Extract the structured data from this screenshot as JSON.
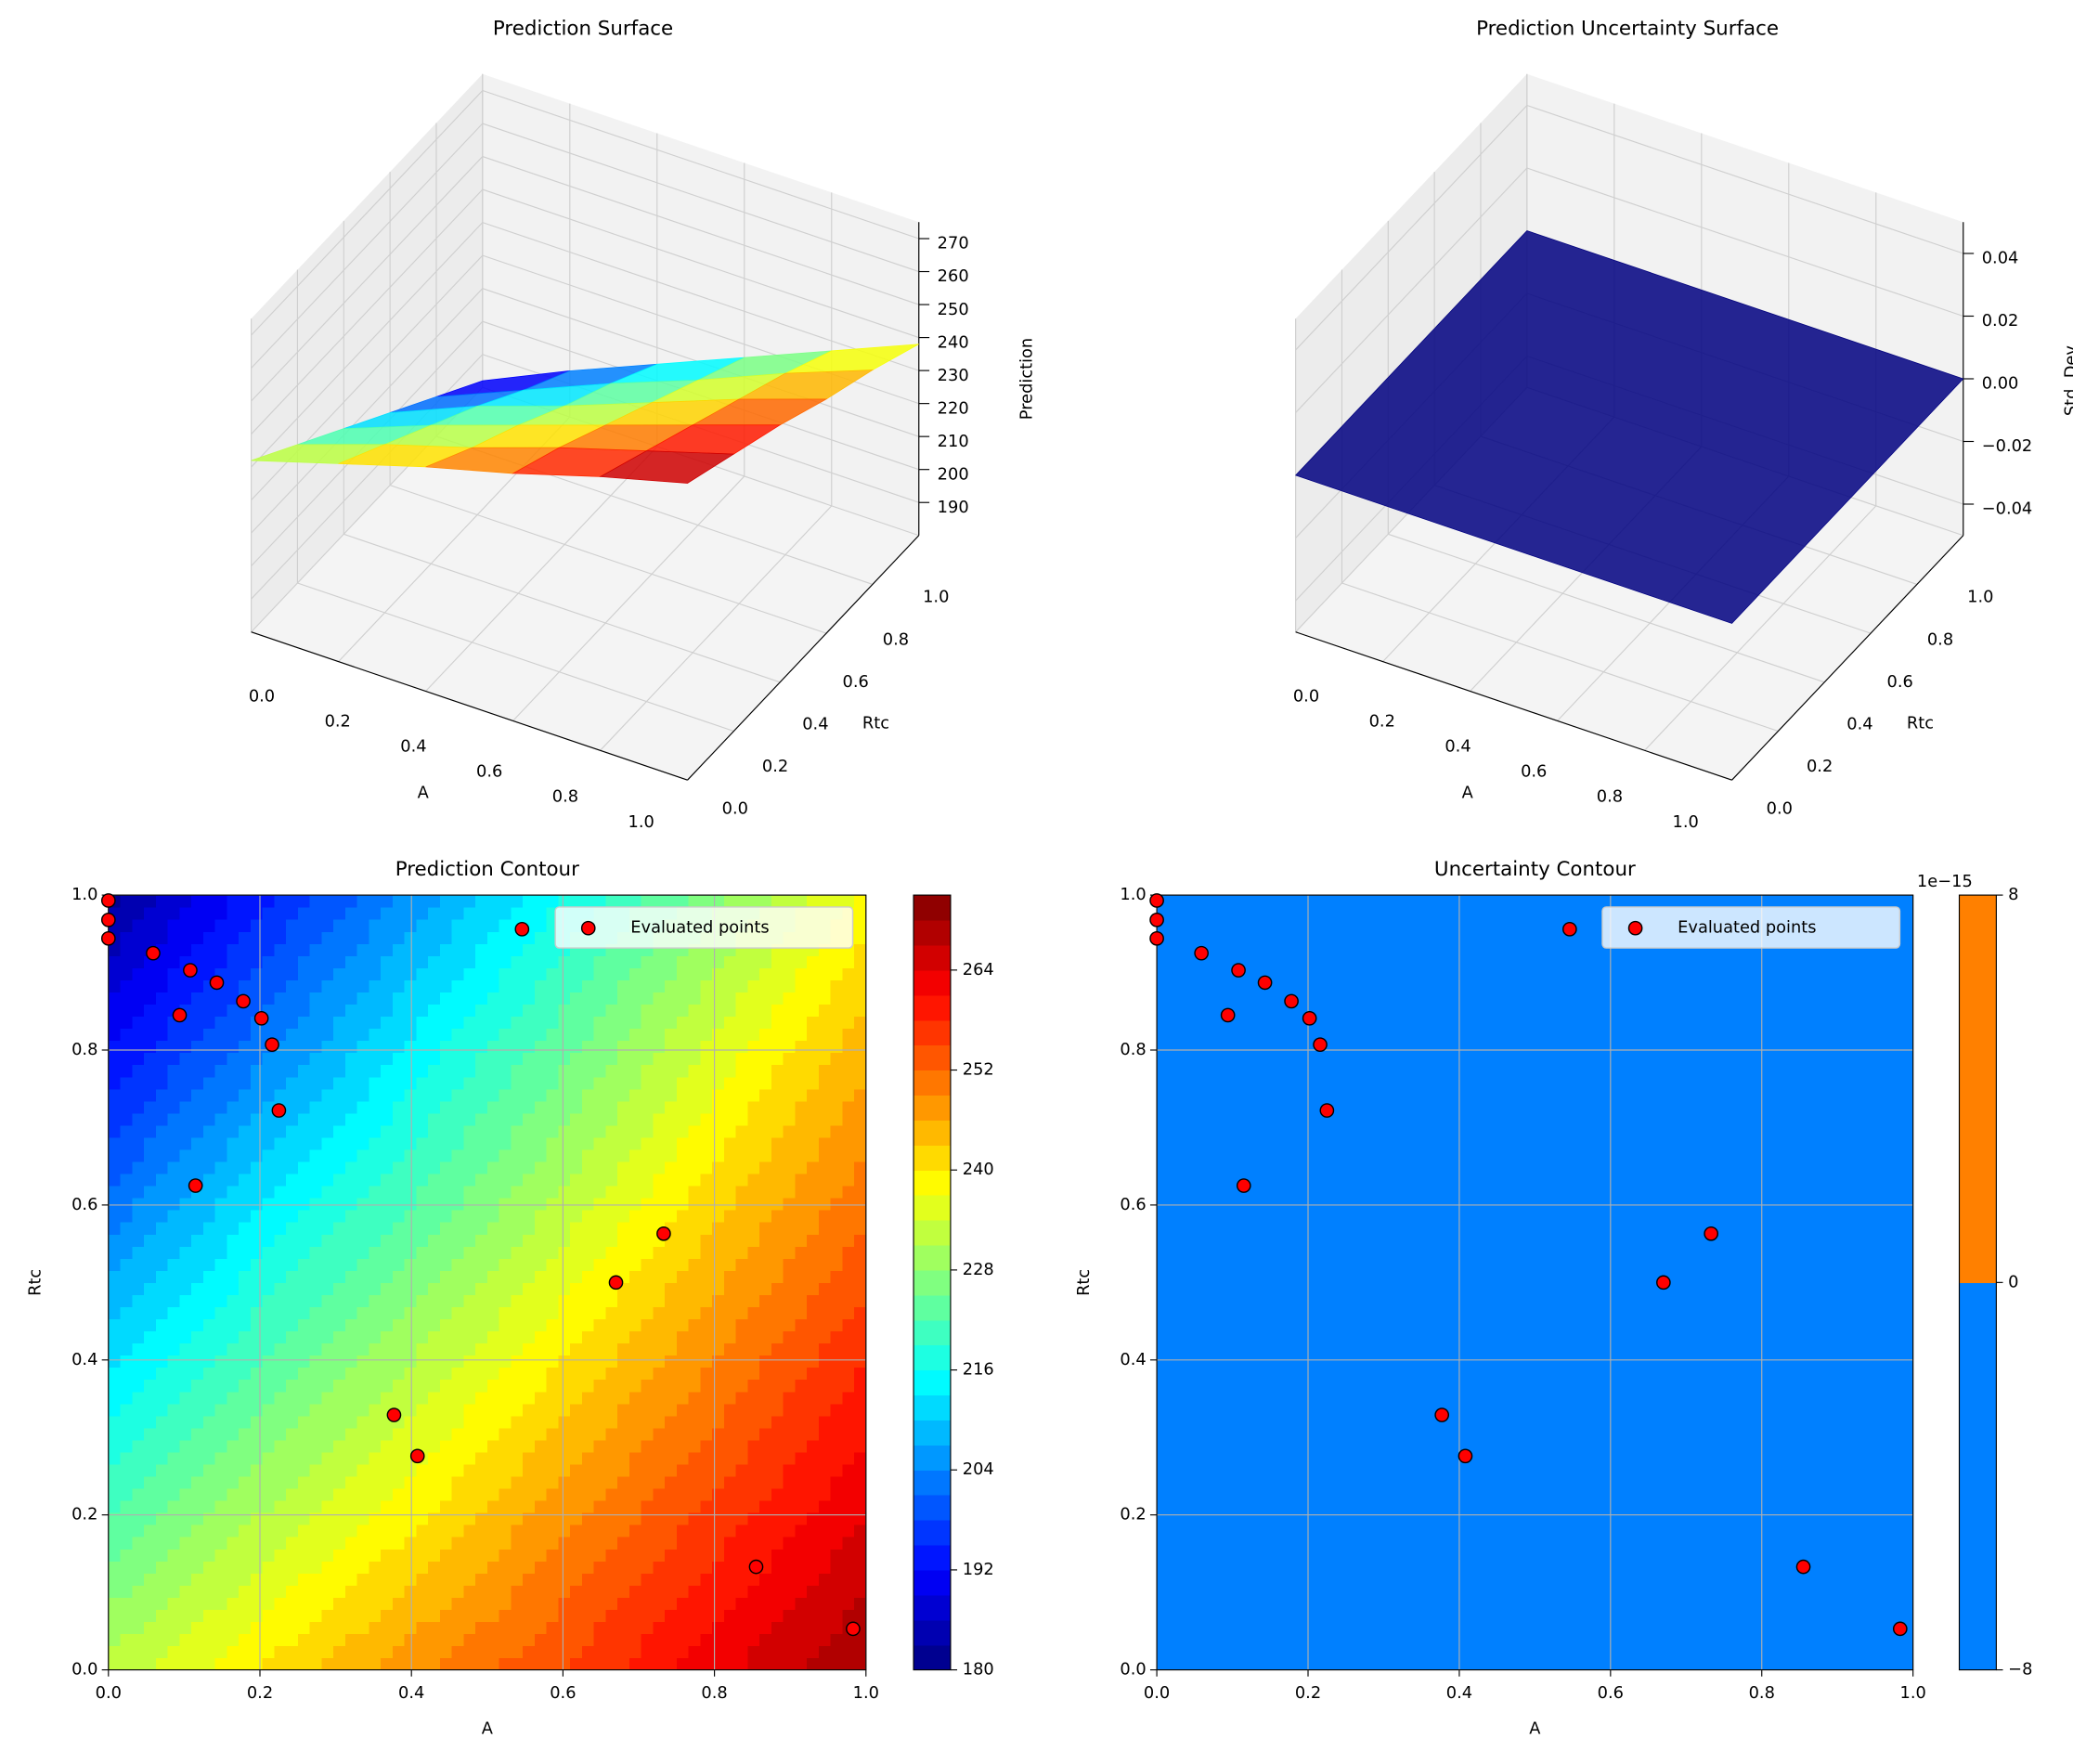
{
  "chart_data": [
    {
      "type": "surface3d",
      "title": "Prediction Surface",
      "xlabel": "A",
      "ylabel": "Rtc",
      "zlabel": "Prediction",
      "x": [
        0,
        0.2,
        0.4,
        0.6,
        0.8,
        1
      ],
      "y": [
        0,
        0.2,
        0.4,
        0.6,
        0.8,
        1
      ],
      "z": [
        [
          232,
          240,
          248,
          255,
          263,
          270
        ],
        [
          222,
          231,
          239,
          248,
          256,
          264
        ],
        [
          212,
          222,
          231,
          240,
          249,
          258
        ],
        [
          202,
          213,
          222,
          232,
          242,
          251
        ],
        [
          192,
          203,
          214,
          224,
          235,
          245
        ],
        [
          182,
          194,
          205,
          216,
          227,
          238
        ]
      ],
      "xlim": [
        0,
        1
      ],
      "ylim": [
        0,
        1
      ],
      "zlim": [
        180,
        275
      ],
      "xticks": [
        {
          "value": 0,
          "label": "0.0"
        },
        {
          "value": 0.2,
          "label": "0.2"
        },
        {
          "value": 0.4,
          "label": "0.4"
        },
        {
          "value": 0.6,
          "label": "0.6"
        },
        {
          "value": 0.8,
          "label": "0.8"
        },
        {
          "value": 1,
          "label": "1.0"
        }
      ],
      "yticks": [
        {
          "value": 0,
          "label": "0.0"
        },
        {
          "value": 0.2,
          "label": "0.2"
        },
        {
          "value": 0.4,
          "label": "0.4"
        },
        {
          "value": 0.6,
          "label": "0.6"
        },
        {
          "value": 0.8,
          "label": "0.8"
        },
        {
          "value": 1,
          "label": "1.0"
        }
      ],
      "zticks": [
        190,
        200,
        210,
        220,
        230,
        240,
        250,
        260,
        270
      ],
      "colormap": "jet"
    },
    {
      "type": "surface3d",
      "title": "Prediction Uncertainty Surface",
      "xlabel": "A",
      "ylabel": "Rtc",
      "zlabel": "Std. Dev.",
      "x": [
        0,
        1
      ],
      "y": [
        0,
        1
      ],
      "z": [
        [
          0,
          0
        ],
        [
          0,
          0
        ]
      ],
      "xlim": [
        0,
        1
      ],
      "ylim": [
        0,
        1
      ],
      "zlim": [
        -0.05,
        0.05
      ],
      "xticks": [
        {
          "value": 0,
          "label": "0.0"
        },
        {
          "value": 0.2,
          "label": "0.2"
        },
        {
          "value": 0.4,
          "label": "0.4"
        },
        {
          "value": 0.6,
          "label": "0.6"
        },
        {
          "value": 0.8,
          "label": "0.8"
        },
        {
          "value": 1,
          "label": "1.0"
        }
      ],
      "yticks": [
        {
          "value": 0,
          "label": "0.0"
        },
        {
          "value": 0.2,
          "label": "0.2"
        },
        {
          "value": 0.4,
          "label": "0.4"
        },
        {
          "value": 0.6,
          "label": "0.6"
        },
        {
          "value": 0.8,
          "label": "0.8"
        },
        {
          "value": 1,
          "label": "1.0"
        }
      ],
      "zticks": [
        {
          "value": -0.04,
          "label": "−0.04"
        },
        {
          "value": -0.02,
          "label": "−0.02"
        },
        {
          "value": 0,
          "label": "0.00"
        },
        {
          "value": 0.02,
          "label": "0.02"
        },
        {
          "value": 0.04,
          "label": "0.04"
        }
      ],
      "colormap": "jet"
    },
    {
      "type": "contour",
      "title": "Prediction Contour",
      "xlabel": "A",
      "ylabel": "Rtc",
      "x": [
        0,
        0.2,
        0.4,
        0.6,
        0.8,
        1
      ],
      "y": [
        0,
        0.2,
        0.4,
        0.6,
        0.8,
        1
      ],
      "z": [
        [
          232,
          240,
          248,
          255,
          263,
          270
        ],
        [
          222,
          231,
          239,
          248,
          256,
          264
        ],
        [
          212,
          222,
          231,
          240,
          249,
          258
        ],
        [
          202,
          213,
          222,
          232,
          242,
          251
        ],
        [
          192,
          203,
          214,
          224,
          235,
          245
        ],
        [
          182,
          194,
          205,
          216,
          227,
          238
        ]
      ],
      "xlim": [
        0,
        1
      ],
      "ylim": [
        0,
        1
      ],
      "xticks": [
        {
          "value": 0,
          "label": "0.0"
        },
        {
          "value": 0.2,
          "label": "0.2"
        },
        {
          "value": 0.4,
          "label": "0.4"
        },
        {
          "value": 0.6,
          "label": "0.6"
        },
        {
          "value": 0.8,
          "label": "0.8"
        },
        {
          "value": 1,
          "label": "1.0"
        }
      ],
      "yticks": [
        {
          "value": 0,
          "label": "0.0"
        },
        {
          "value": 0.2,
          "label": "0.2"
        },
        {
          "value": 0.4,
          "label": "0.4"
        },
        {
          "value": 0.6,
          "label": "0.6"
        },
        {
          "value": 0.8,
          "label": "0.8"
        },
        {
          "value": 1,
          "label": "1.0"
        }
      ],
      "grid": true,
      "colormap": "jet",
      "clim": [
        180,
        273
      ],
      "level_step": 3,
      "cticks": [
        180,
        192,
        204,
        216,
        228,
        240,
        252,
        264
      ],
      "legend": "upper right",
      "series": [
        {
          "name": "Evaluated points",
          "color": "#ff0000",
          "x": [
            0,
            0,
            0,
            0.059,
            0.108,
            0.143,
            0.094,
            0.178,
            0.202,
            0.216,
            0.225,
            0.115,
            0.546,
            0.733,
            0.67,
            0.377,
            0.408,
            0.855,
            0.983
          ],
          "y": [
            0.993,
            0.968,
            0.944,
            0.925,
            0.903,
            0.887,
            0.845,
            0.863,
            0.841,
            0.807,
            0.722,
            0.625,
            0.956,
            0.563,
            0.5,
            0.329,
            0.276,
            0.133,
            0.053
          ]
        }
      ]
    },
    {
      "type": "contour",
      "title": "Uncertainty Contour",
      "xlabel": "A",
      "ylabel": "Rtc",
      "x": [
        0,
        1
      ],
      "y": [
        0,
        1
      ],
      "z": [
        [
          0,
          0
        ],
        [
          0,
          0
        ]
      ],
      "xlim": [
        0,
        1
      ],
      "ylim": [
        0,
        1
      ],
      "xticks": [
        {
          "value": 0,
          "label": "0.0"
        },
        {
          "value": 0.2,
          "label": "0.2"
        },
        {
          "value": 0.4,
          "label": "0.4"
        },
        {
          "value": 0.6,
          "label": "0.6"
        },
        {
          "value": 0.8,
          "label": "0.8"
        },
        {
          "value": 1,
          "label": "1.0"
        }
      ],
      "yticks": [
        {
          "value": 0,
          "label": "0.0"
        },
        {
          "value": 0.2,
          "label": "0.2"
        },
        {
          "value": 0.4,
          "label": "0.4"
        },
        {
          "value": 0.6,
          "label": "0.6"
        },
        {
          "value": 0.8,
          "label": "0.8"
        },
        {
          "value": 1,
          "label": "1.0"
        }
      ],
      "grid": true,
      "colormap": "jet",
      "clim": [
        -8,
        8
      ],
      "level_step": 8,
      "cticks": [
        {
          "value": -8,
          "label": "−8"
        },
        0,
        8
      ],
      "offset_label": "1e−15",
      "legend": "upper right",
      "series": [
        {
          "name": "Evaluated points",
          "color": "#ff0000",
          "x": [
            0,
            0,
            0,
            0.059,
            0.108,
            0.143,
            0.094,
            0.178,
            0.202,
            0.216,
            0.225,
            0.115,
            0.546,
            0.733,
            0.67,
            0.377,
            0.408,
            0.855,
            0.983
          ],
          "y": [
            0.993,
            0.968,
            0.944,
            0.925,
            0.903,
            0.887,
            0.845,
            0.863,
            0.841,
            0.807,
            0.722,
            0.625,
            0.956,
            0.563,
            0.5,
            0.329,
            0.276,
            0.133,
            0.053
          ]
        }
      ]
    }
  ]
}
